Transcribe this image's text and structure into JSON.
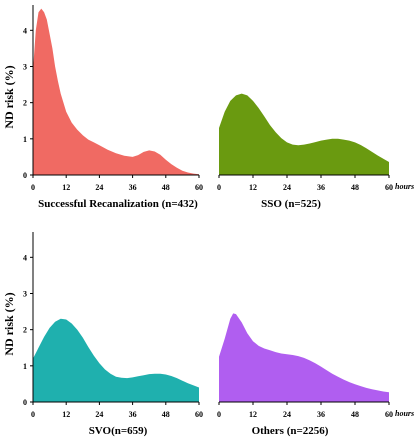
{
  "figure": {
    "background": "#ffffff"
  },
  "chart_data": [
    {
      "type": "area",
      "title": "Successful Recanalization (n=432)",
      "color": "#f06a63",
      "ylabel": "ND risk (%)",
      "xticks": [
        0,
        12,
        24,
        36,
        48,
        60
      ],
      "yticks": [
        0,
        1,
        2,
        3,
        4
      ],
      "xlim": [
        0,
        60
      ],
      "ylim": [
        0,
        4.7
      ],
      "x": [
        0,
        1,
        2,
        3,
        4,
        5,
        6,
        7,
        8,
        9,
        10,
        12,
        14,
        16,
        18,
        20,
        22,
        24,
        27,
        30,
        33,
        36,
        38,
        40,
        42,
        44,
        46,
        48,
        50,
        52,
        54,
        56,
        58,
        60
      ],
      "y": [
        2.9,
        4.0,
        4.5,
        4.6,
        4.5,
        4.3,
        3.9,
        3.5,
        3.0,
        2.6,
        2.25,
        1.75,
        1.45,
        1.25,
        1.1,
        0.98,
        0.9,
        0.82,
        0.7,
        0.6,
        0.53,
        0.5,
        0.55,
        0.64,
        0.68,
        0.65,
        0.56,
        0.42,
        0.3,
        0.2,
        0.12,
        0.07,
        0.04,
        0.02
      ]
    },
    {
      "type": "area",
      "title": "SSO (n=525)",
      "color": "#6a9a10",
      "ylabel": "",
      "xticks": [
        0,
        12,
        24,
        36,
        48,
        60
      ],
      "yticks": [
        0,
        1,
        2,
        3,
        4
      ],
      "xlim": [
        0,
        60
      ],
      "ylim": [
        0,
        4.7
      ],
      "x_unit": "hours",
      "x": [
        0,
        2,
        4,
        6,
        8,
        10,
        12,
        14,
        16,
        18,
        20,
        22,
        24,
        26,
        28,
        30,
        32,
        34,
        36,
        38,
        40,
        42,
        44,
        46,
        48,
        50,
        52,
        54,
        56,
        58,
        60
      ],
      "y": [
        1.3,
        1.75,
        2.05,
        2.2,
        2.25,
        2.2,
        2.05,
        1.85,
        1.62,
        1.38,
        1.18,
        1.02,
        0.9,
        0.84,
        0.82,
        0.84,
        0.87,
        0.91,
        0.95,
        0.98,
        1.0,
        1.0,
        0.98,
        0.95,
        0.9,
        0.83,
        0.74,
        0.64,
        0.54,
        0.45,
        0.36
      ]
    },
    {
      "type": "area",
      "title": "SVO(n=659)",
      "color": "#1fb0ae",
      "ylabel": "ND risk (%)",
      "xticks": [
        0,
        12,
        24,
        36,
        48,
        60
      ],
      "yticks": [
        0,
        1,
        2,
        3,
        4
      ],
      "xlim": [
        0,
        60
      ],
      "ylim": [
        0,
        4.7
      ],
      "x": [
        0,
        2,
        4,
        6,
        8,
        10,
        12,
        14,
        16,
        18,
        20,
        22,
        24,
        26,
        28,
        30,
        32,
        34,
        36,
        38,
        40,
        42,
        44,
        46,
        48,
        50,
        52,
        54,
        56,
        58,
        60
      ],
      "y": [
        1.2,
        1.5,
        1.8,
        2.05,
        2.22,
        2.3,
        2.28,
        2.17,
        2.0,
        1.78,
        1.52,
        1.28,
        1.07,
        0.9,
        0.78,
        0.7,
        0.67,
        0.66,
        0.68,
        0.71,
        0.74,
        0.77,
        0.78,
        0.78,
        0.76,
        0.72,
        0.66,
        0.59,
        0.52,
        0.46,
        0.4
      ]
    },
    {
      "type": "area",
      "title": "Others (n=2256)",
      "color": "#b05ef0",
      "ylabel": "",
      "xticks": [
        0,
        12,
        24,
        36,
        48,
        60
      ],
      "yticks": [
        0,
        1,
        2,
        3,
        4
      ],
      "xlim": [
        0,
        60
      ],
      "ylim": [
        0,
        4.7
      ],
      "x_unit": "hours",
      "x": [
        0,
        2,
        4,
        5,
        6,
        8,
        10,
        12,
        14,
        16,
        18,
        20,
        22,
        24,
        26,
        28,
        30,
        32,
        34,
        36,
        38,
        40,
        42,
        44,
        46,
        48,
        50,
        52,
        54,
        56,
        58,
        60
      ],
      "y": [
        1.25,
        1.75,
        2.3,
        2.45,
        2.43,
        2.2,
        1.9,
        1.68,
        1.55,
        1.48,
        1.43,
        1.38,
        1.34,
        1.32,
        1.3,
        1.27,
        1.22,
        1.15,
        1.07,
        0.98,
        0.88,
        0.78,
        0.7,
        0.62,
        0.55,
        0.49,
        0.44,
        0.39,
        0.35,
        0.32,
        0.29,
        0.27
      ]
    }
  ]
}
